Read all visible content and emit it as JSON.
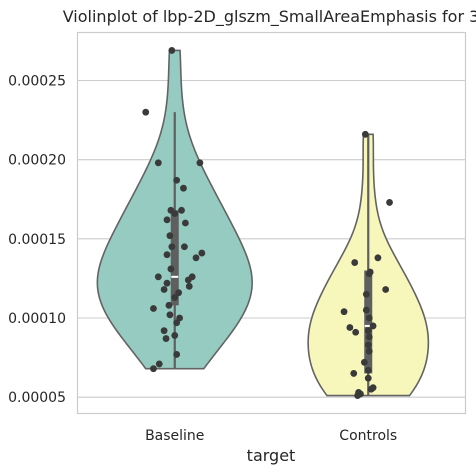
{
  "chart_data": {
    "type": "violin",
    "title": "Violinplot of lbp-2D_glszm_SmallAreaEmphasis for 3",
    "xlabel": "target",
    "ylabel": "",
    "categories": [
      "Baseline",
      "Controls"
    ],
    "ylim": [
      4e-05,
      0.00028
    ],
    "yticks": [
      5e-05,
      0.0001,
      0.00015,
      0.0002,
      0.00025
    ],
    "ytick_labels": [
      "0.00005",
      "0.00010",
      "0.00015",
      "0.00020",
      "0.00025"
    ],
    "grid": "horizontal",
    "violin_colors": [
      "#96cbc1",
      "#f7f7bb"
    ],
    "edge_color": "#636363",
    "point_color": "#3a3a3a",
    "groups": [
      {
        "name": "Baseline",
        "range": [
          6.8e-05,
          0.000269
        ],
        "quartiles": [
          0.000108,
          0.000126,
          0.000168
        ],
        "whisker": [
          6.8e-05,
          0.00023
        ],
        "points": [
          [
            -0.03,
            0.000269
          ],
          [
            -0.3,
            0.00023
          ],
          [
            -0.17,
            0.000198
          ],
          [
            0.26,
            0.000198
          ],
          [
            0.02,
            0.000187
          ],
          [
            0.09,
            0.000182
          ],
          [
            0.07,
            0.000168
          ],
          [
            -0.04,
            0.000168
          ],
          [
            0.0,
            0.000166
          ],
          [
            -0.08,
            0.000162
          ],
          [
            0.11,
            0.00016
          ],
          [
            -0.05,
            0.000152
          ],
          [
            -0.03,
            0.000145
          ],
          [
            0.1,
            0.000145
          ],
          [
            0.28,
            0.000141
          ],
          [
            -0.08,
            0.00014
          ],
          [
            0.22,
            0.000138
          ],
          [
            -0.04,
            0.000131
          ],
          [
            -0.17,
            0.000126
          ],
          [
            0.18,
            0.000126
          ],
          [
            0.14,
            0.000124
          ],
          [
            -0.08,
            0.000122
          ],
          [
            0.15,
            0.00012
          ],
          [
            -0.11,
            0.000118
          ],
          [
            0.04,
            0.000116
          ],
          [
            0.0,
            0.000113
          ],
          [
            -0.06,
            0.000108
          ],
          [
            -0.22,
            0.000106
          ],
          [
            -0.05,
            0.000102
          ],
          [
            0.05,
            0.0001
          ],
          [
            0.02,
            9.7e-05
          ],
          [
            -0.11,
            9.2e-05
          ],
          [
            0.0,
            8.9e-05
          ],
          [
            -0.09,
            8.7e-05
          ],
          [
            0.02,
            7.7e-05
          ],
          [
            -0.16,
            7.1e-05
          ],
          [
            -0.22,
            6.8e-05
          ]
        ]
      },
      {
        "name": "Controls",
        "range": [
          5.1e-05,
          0.000216
        ],
        "quartiles": [
          6.5e-05,
          9.5e-05,
          0.00013
        ],
        "whisker": [
          5.1e-05,
          0.000216
        ],
        "points": [
          [
            -0.03,
            0.000216
          ],
          [
            0.22,
            0.000173
          ],
          [
            0.1,
            0.000138
          ],
          [
            -0.14,
            0.000135
          ],
          [
            0.02,
            0.000129
          ],
          [
            0.01,
            0.000128
          ],
          [
            0.18,
            0.000118
          ],
          [
            -0.02,
            0.000115
          ],
          [
            -0.02,
            0.000105
          ],
          [
            -0.25,
            0.000104
          ],
          [
            0.01,
            0.0001
          ],
          [
            0.05,
            9.5e-05
          ],
          [
            -0.19,
            9.4e-05
          ],
          [
            0.0,
            9.2e-05
          ],
          [
            -0.13,
            9.1e-05
          ],
          [
            0.01,
            8.8e-05
          ],
          [
            0.0,
            8.3e-05
          ],
          [
            0.01,
            7.9e-05
          ],
          [
            -0.04,
            7.2e-05
          ],
          [
            0.0,
            6.7e-05
          ],
          [
            -0.15,
            6.5e-05
          ],
          [
            0.0,
            6.2e-05
          ],
          [
            0.05,
            5.6e-05
          ],
          [
            0.03,
            5.5e-05
          ],
          [
            -0.1,
            5.3e-05
          ],
          [
            -0.08,
            5.2e-05
          ],
          [
            -0.11,
            5.1e-05
          ]
        ]
      }
    ]
  }
}
